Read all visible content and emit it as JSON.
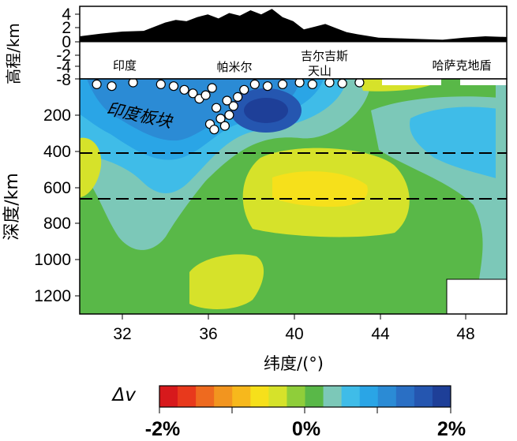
{
  "chart_data": {
    "type": "heatmap",
    "top_panel": {
      "ylabel": "高程/km",
      "yticks": [
        "4",
        "2",
        "0",
        "-2",
        "-4",
        "-8"
      ],
      "region_labels": [
        "印度",
        "帕米尔",
        "吉尔吉斯",
        "天山",
        "哈萨克地盾"
      ]
    },
    "main_panel": {
      "xlabel": "纬度/(°)",
      "ylabel": "深度/km",
      "xticks": [
        "32",
        "36",
        "40",
        "44",
        "48"
      ],
      "yticks": [
        "200",
        "400",
        "600",
        "800",
        "1000",
        "1200"
      ],
      "xlim": [
        30,
        50
      ],
      "ylim": [
        1300,
        0
      ],
      "discontinuities_km": [
        410,
        660
      ],
      "annotation": "印度板块"
    },
    "profile": {
      "x": [
        30,
        31,
        32,
        33,
        33.5,
        34,
        34.5,
        35,
        35.5,
        36,
        36.5,
        37,
        37.5,
        38,
        38.5,
        39,
        39.5,
        40,
        40.5,
        41,
        41.5,
        42,
        42.5,
        43,
        44,
        45,
        46,
        47,
        48,
        49,
        50
      ],
      "y": [
        0.8,
        1.2,
        1.5,
        1.6,
        2.2,
        2.8,
        3.2,
        3.0,
        3.6,
        4.0,
        3.4,
        4.2,
        3.8,
        4.6,
        4.0,
        4.8,
        3.6,
        3.0,
        1.8,
        2.2,
        2.6,
        2.0,
        1.4,
        1.1,
        0.6,
        0.5,
        0.4,
        0.3,
        0.6,
        0.8,
        0.7
      ]
    },
    "events": [
      {
        "lat": 30.8,
        "depth": 30
      },
      {
        "lat": 31.5,
        "depth": 40
      },
      {
        "lat": 32.5,
        "depth": 20
      },
      {
        "lat": 33.8,
        "depth": 30
      },
      {
        "lat": 34.4,
        "depth": 40
      },
      {
        "lat": 34.9,
        "depth": 60
      },
      {
        "lat": 35.3,
        "depth": 80
      },
      {
        "lat": 35.6,
        "depth": 110
      },
      {
        "lat": 35.9,
        "depth": 90
      },
      {
        "lat": 36.2,
        "depth": 50
      },
      {
        "lat": 36.4,
        "depth": 160
      },
      {
        "lat": 36.6,
        "depth": 220
      },
      {
        "lat": 36.8,
        "depth": 260
      },
      {
        "lat": 37.0,
        "depth": 200
      },
      {
        "lat": 37.2,
        "depth": 150
      },
      {
        "lat": 37.4,
        "depth": 100
      },
      {
        "lat": 37.7,
        "depth": 60
      },
      {
        "lat": 38.2,
        "depth": 30
      },
      {
        "lat": 38.8,
        "depth": 40
      },
      {
        "lat": 39.5,
        "depth": 30
      },
      {
        "lat": 40.3,
        "depth": 20
      },
      {
        "lat": 40.9,
        "depth": 30
      },
      {
        "lat": 41.7,
        "depth": 20
      },
      {
        "lat": 42.3,
        "depth": 25
      },
      {
        "lat": 43.1,
        "depth": 20
      },
      {
        "lat": 36.1,
        "depth": 250
      },
      {
        "lat": 36.3,
        "depth": 280
      },
      {
        "lat": 36.9,
        "depth": 120
      }
    ],
    "colorbar": {
      "label": "Δv",
      "ticks": [
        "-2%",
        "0%",
        "2%"
      ],
      "colors": [
        "#d7191c",
        "#e8391c",
        "#ee6a1f",
        "#f2951f",
        "#f7b81c",
        "#f6e01b",
        "#d6e22a",
        "#8fce3a",
        "#59b848",
        "#7cc8b8",
        "#3fbce8",
        "#2aa5e6",
        "#2b8bd5",
        "#2a6fc4",
        "#2556b0",
        "#1e3f98"
      ]
    }
  }
}
